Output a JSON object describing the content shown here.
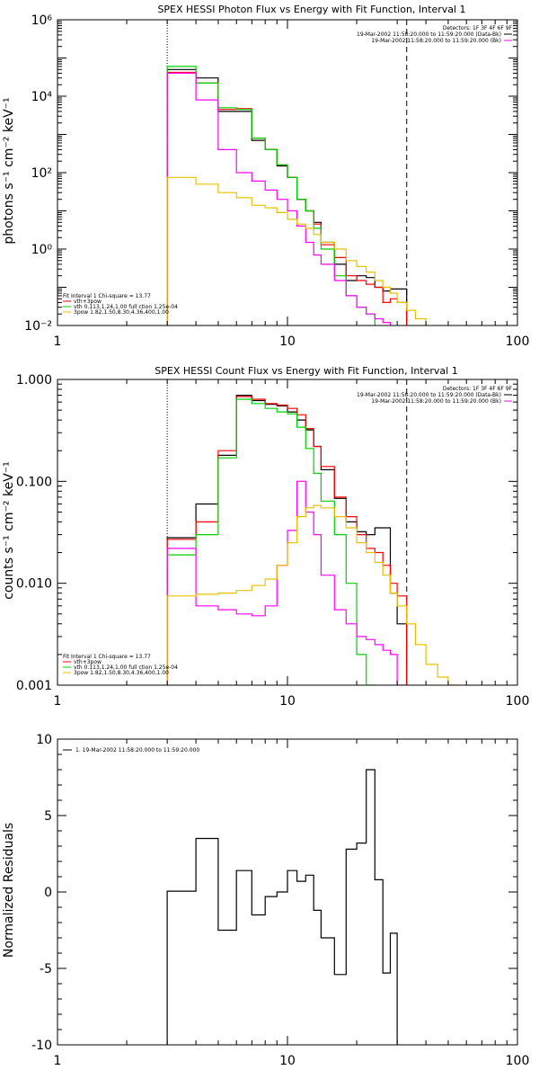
{
  "chart_data": [
    {
      "type": "line",
      "title": "SPEX HESSI Photon Flux vs Energy with Fit Function, Interval 1",
      "ylabel": "photons s⁻¹ cm⁻² keV⁻¹",
      "xlabel": "",
      "xscale": "log",
      "yscale": "log",
      "xlim": [
        1,
        100
      ],
      "ylim": [
        0.01,
        1000000
      ],
      "x_ticks": [
        {
          "value": 1,
          "label": "1"
        },
        {
          "value": 10,
          "label": "10"
        },
        {
          "value": 100,
          "label": "100"
        }
      ],
      "y_ticks": [
        {
          "value": 0.01,
          "label": "10⁻²"
        },
        {
          "value": 1,
          "label": "10⁰"
        },
        {
          "value": 100,
          "label": "10²"
        },
        {
          "value": 10000,
          "label": "10⁴"
        },
        {
          "value": 1000000,
          "label": "10⁶"
        }
      ],
      "vlines": [
        {
          "x": 3.0,
          "style": "dotted"
        },
        {
          "x": 33.0,
          "style": "dashed"
        }
      ],
      "info_top_right": [
        "Detectors: 1F 3F 4F 6F 9F",
        "19-Mar-2002 11:58:20.000 to 11:59:20.000 (Data-Bk)",
        "19-Mar-2002 11:58:20.000 to 11:59:20.000 (Bk)"
      ],
      "legend_lines": [
        "Fit Interval 1    Chi-square = 13.77",
        "vth+3pow",
        "vth 0.113,1.24,1.00  full ction 1.25e-04",
        "3pow 1.82,1.50,8.30,4.36,400,1.00"
      ],
      "bin_edges": [
        3.0,
        4.0,
        5.0,
        6.0,
        7.0,
        8.0,
        9.0,
        10.0,
        11.0,
        12.0,
        13.0,
        14.0,
        16.0,
        18.0,
        20.0,
        22.0,
        24.0,
        26.0,
        28.0,
        30.0,
        33.0,
        36.0,
        40.0,
        45.0,
        50.0,
        56.0
      ],
      "series": [
        {
          "color": "#000000",
          "values": [
            50000,
            30000,
            4000,
            4000,
            700,
            400,
            150,
            75,
            20,
            10,
            5,
            1.5,
            0.4,
            0.15,
            0.2,
            0.18,
            0.1,
            0.08,
            0.09,
            0.09,
            null,
            null,
            null,
            null,
            null
          ]
        },
        {
          "color": "#ff0000",
          "values": [
            42000,
            22000,
            4500,
            4700,
            800,
            400,
            160,
            75,
            20,
            10,
            4.5,
            1.3,
            0.6,
            0.2,
            0.15,
            0.12,
            0.1,
            0.04,
            0.05,
            0.04,
            null,
            null,
            null,
            null,
            null
          ]
        },
        {
          "color": "#00d000",
          "values": [
            60000,
            22000,
            5000,
            4500,
            800,
            400,
            160,
            75,
            20,
            10,
            3.5,
            1.0,
            0.2,
            0.06,
            0.03,
            0.02,
            null,
            null,
            null,
            null,
            null,
            null,
            null,
            null,
            null
          ]
        },
        {
          "color": "#ff00ff",
          "values": [
            40000,
            8000,
            400,
            100,
            60,
            35,
            20,
            10,
            4,
            1.5,
            0.7,
            0.4,
            0.15,
            0.06,
            0.03,
            0.02,
            0.015,
            0.012,
            null,
            null,
            null,
            null,
            null,
            null,
            null
          ]
        },
        {
          "color": "#e8c000",
          "values": [
            75,
            50,
            30,
            22,
            14,
            12,
            9,
            6,
            4.5,
            3.5,
            2.4,
            1.5,
            1.0,
            0.5,
            0.35,
            0.25,
            0.15,
            0.1,
            0.07,
            0.04,
            0.025,
            0.015,
            null,
            null,
            null
          ]
        }
      ]
    },
    {
      "type": "line",
      "title": "SPEX HESSI Count Flux vs Energy with Fit Function, Interval 1",
      "ylabel": "counts s⁻¹ cm⁻² keV⁻¹",
      "xlabel": "",
      "xscale": "log",
      "yscale": "log",
      "xlim": [
        1,
        100
      ],
      "ylim": [
        0.001,
        1.0
      ],
      "x_ticks": [
        {
          "value": 1,
          "label": "1"
        },
        {
          "value": 10,
          "label": "10"
        },
        {
          "value": 100,
          "label": "100"
        }
      ],
      "y_ticks": [
        {
          "value": 0.001,
          "label": "0.001"
        },
        {
          "value": 0.01,
          "label": "0.010"
        },
        {
          "value": 0.1,
          "label": "0.100"
        },
        {
          "value": 1.0,
          "label": "1.000"
        }
      ],
      "vlines": [
        {
          "x": 3.0,
          "style": "dotted"
        },
        {
          "x": 33.0,
          "style": "dashed"
        }
      ],
      "info_top_right": [
        "Detectors: 1F 3F 4F 6F 9F",
        "19-Mar-2002 11:58:20.000 to 11:59:20.000 (Data-Bk)",
        "19-Mar-2002 11:58:20.000 to 11:59:20.000 (Bk)"
      ],
      "legend_lines": [
        "Fit Interval 1    Chi-square = 13.77",
        "vth+3pow",
        "vth 0.113,1.24,1.00  full ction 1.25e-04",
        "3pow 1.82,1.50,8.30,4.36,400,1.00"
      ],
      "bin_edges": [
        3.0,
        4.0,
        5.0,
        6.0,
        7.0,
        8.0,
        9.0,
        10.0,
        11.0,
        12.0,
        13.0,
        14.0,
        16.0,
        18.0,
        20.0,
        22.0,
        24.0,
        26.0,
        28.0,
        30.0,
        33.0,
        36.0,
        40.0,
        45.0,
        50.0,
        56.0
      ],
      "series": [
        {
          "color": "#000000",
          "values": [
            0.028,
            0.06,
            0.18,
            0.7,
            0.62,
            0.57,
            0.55,
            0.48,
            0.4,
            0.32,
            0.22,
            0.13,
            0.068,
            0.04,
            0.032,
            0.03,
            0.035,
            0.035,
            0.008,
            0.004,
            null,
            null,
            null,
            null,
            null
          ]
        },
        {
          "color": "#ff0000",
          "values": [
            0.027,
            0.04,
            0.2,
            0.68,
            0.64,
            0.58,
            0.56,
            0.52,
            0.45,
            0.33,
            0.22,
            0.14,
            0.07,
            0.045,
            0.03,
            0.022,
            0.02,
            0.015,
            0.01,
            0.0075,
            null,
            null,
            null,
            null,
            null
          ]
        },
        {
          "color": "#00d000",
          "values": [
            0.019,
            0.03,
            0.17,
            0.64,
            0.58,
            0.52,
            0.48,
            0.46,
            0.34,
            0.21,
            0.12,
            0.064,
            0.03,
            0.01,
            0.002,
            0.001,
            null,
            null,
            null,
            null,
            null,
            null,
            null,
            null,
            null
          ]
        },
        {
          "color": "#ff00ff",
          "values": [
            0.022,
            0.006,
            0.0055,
            0.005,
            0.0048,
            0.006,
            0.015,
            0.033,
            0.1,
            0.05,
            0.03,
            0.012,
            0.0055,
            0.004,
            0.003,
            0.0028,
            0.0025,
            0.0022,
            0.002,
            0.001,
            null,
            null,
            null,
            null,
            null
          ]
        },
        {
          "color": "#e8c000",
          "values": [
            0.0075,
            0.0078,
            0.008,
            0.0085,
            0.0095,
            0.011,
            0.015,
            0.025,
            0.045,
            0.055,
            0.058,
            0.055,
            0.045,
            0.035,
            0.025,
            0.02,
            0.016,
            0.012,
            0.008,
            0.006,
            0.004,
            0.0025,
            0.0016,
            0.0012,
            0.001
          ]
        }
      ]
    },
    {
      "type": "line",
      "title": "",
      "ylabel": "Normalized Residuals",
      "xlabel": "",
      "xscale": "log",
      "yscale": "linear",
      "xlim": [
        1,
        100
      ],
      "ylim": [
        -10,
        10
      ],
      "x_ticks": [
        {
          "value": 1,
          "label": "1"
        },
        {
          "value": 10,
          "label": "10"
        },
        {
          "value": 100,
          "label": "100"
        }
      ],
      "y_ticks": [
        {
          "value": -10,
          "label": "-10"
        },
        {
          "value": -5,
          "label": "-5"
        },
        {
          "value": 0,
          "label": "0"
        },
        {
          "value": 5,
          "label": "5"
        },
        {
          "value": 10,
          "label": "10"
        }
      ],
      "legend": "1. 19-Mar-2002 11:58:20.000 to 11:59:20.000",
      "bin_edges": [
        3.0,
        4.0,
        5.0,
        6.0,
        7.0,
        8.0,
        9.0,
        10.0,
        11.0,
        12.0,
        13.0,
        14.0,
        16.0,
        18.0,
        20.0,
        22.0,
        24.0,
        26.0,
        28.0,
        30.0,
        33.0
      ],
      "series": [
        {
          "color": "#000000",
          "values": [
            0.05,
            3.5,
            -2.5,
            1.4,
            -1.5,
            -0.3,
            0,
            1.4,
            0.7,
            1.1,
            -1.2,
            -3.0,
            -5.4,
            2.8,
            3.2,
            8.0,
            0.8,
            -5.3,
            -2.7,
            null
          ]
        }
      ]
    }
  ]
}
